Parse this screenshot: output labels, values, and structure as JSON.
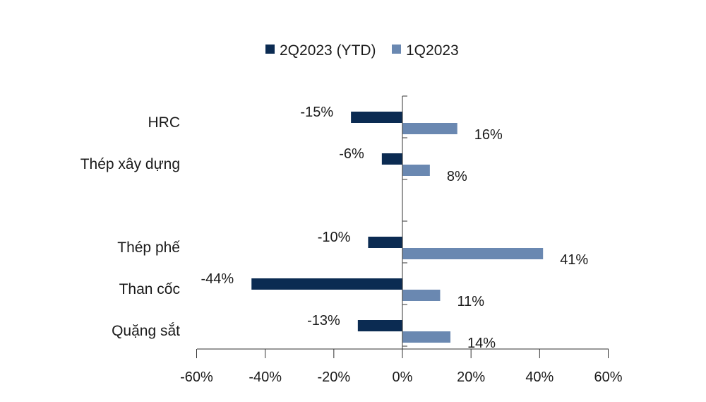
{
  "chart_data": {
    "type": "bar",
    "orientation": "horizontal",
    "title": "",
    "xlabel": "",
    "ylabel": "",
    "xlim": [
      -60,
      60
    ],
    "x_ticks": [
      -60,
      -40,
      -20,
      0,
      20,
      40,
      60
    ],
    "x_tick_labels": [
      "-60%",
      "-40%",
      "-20%",
      "0%",
      "20%",
      "40%",
      "60%"
    ],
    "unit": "%",
    "grid": false,
    "legend_position": "top-center",
    "categories": [
      "HRC",
      "Thép xây dựng",
      "",
      "Thép phế",
      "Than cốc",
      "Quặng sắt"
    ],
    "series": [
      {
        "name": "2Q2023 (YTD)",
        "color": "#0b2b52",
        "values": [
          -15,
          -6,
          null,
          -10,
          -44,
          -13
        ],
        "labels": [
          "-15%",
          "-6%",
          "",
          "-10%",
          "-44%",
          "-13%"
        ]
      },
      {
        "name": "1Q2023",
        "color": "#6a88b1",
        "values": [
          16,
          8,
          null,
          41,
          11,
          14
        ],
        "labels": [
          "16%",
          "8%",
          "",
          "41%",
          "11%",
          "14%"
        ]
      }
    ]
  }
}
